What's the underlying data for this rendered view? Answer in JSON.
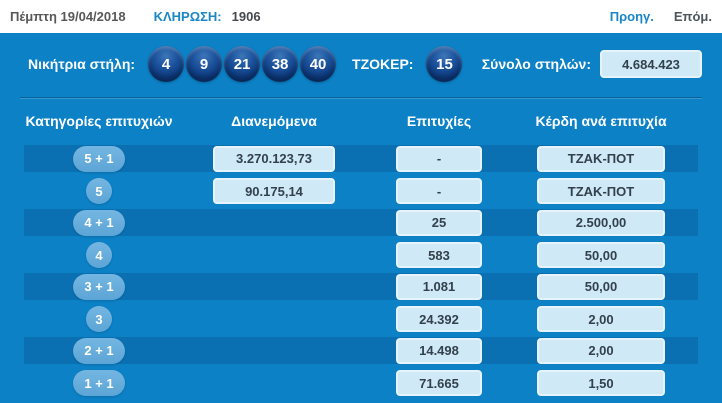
{
  "topbar": {
    "date": "Πέμπτη 19/04/2018",
    "draw_label": "ΚΛΗΡΩΣΗ:",
    "draw_number": "1906",
    "prev_label": "Προηγ.",
    "next_label": "Επόμ."
  },
  "panel": {
    "winning_label": "Νικήτρια στήλη:",
    "winning_numbers": [
      "4",
      "9",
      "21",
      "38",
      "40"
    ],
    "joker_label": "ΤΖΟΚΕΡ:",
    "joker_number": "15",
    "total_label": "Σύνολο στηλών:",
    "total_value": "4.684.423"
  },
  "table": {
    "headers": [
      "Κατηγορίες επιτυχιών",
      "Διανεμόμενα",
      "Επιτυχίες",
      "Κέρδη ανά επιτυχία"
    ],
    "rows": [
      {
        "category": "5 + 1",
        "badge_shape": "pill",
        "distributed": "3.270.123,73",
        "winners": "-",
        "prize": "ΤΖΑΚ-ΠΟΤ",
        "striped": true
      },
      {
        "category": "5",
        "badge_shape": "circle",
        "distributed": "90.175,14",
        "winners": "-",
        "prize": "ΤΖΑΚ-ΠΟΤ",
        "striped": false
      },
      {
        "category": "4 + 1",
        "badge_shape": "pill",
        "distributed": "",
        "winners": "25",
        "prize": "2.500,00",
        "striped": true
      },
      {
        "category": "4",
        "badge_shape": "circle",
        "distributed": "",
        "winners": "583",
        "prize": "50,00",
        "striped": false
      },
      {
        "category": "3 + 1",
        "badge_shape": "pill",
        "distributed": "",
        "winners": "1.081",
        "prize": "50,00",
        "striped": true
      },
      {
        "category": "3",
        "badge_shape": "circle",
        "distributed": "",
        "winners": "24.392",
        "prize": "2,00",
        "striped": false
      },
      {
        "category": "2 + 1",
        "badge_shape": "pill",
        "distributed": "",
        "winners": "14.498",
        "prize": "2,00",
        "striped": true
      },
      {
        "category": "1 + 1",
        "badge_shape": "pill",
        "distributed": "",
        "winners": "71.665",
        "prize": "1,50",
        "striped": false
      }
    ]
  },
  "colors": {
    "panel_blue": "#0c81c5",
    "stripe_blue": "#0a70b2",
    "badge_blue": "#68aedd",
    "value_box_bg": "#cfe9f7",
    "ball_navy": "#0d3b82",
    "link_blue": "#1b86c6"
  }
}
